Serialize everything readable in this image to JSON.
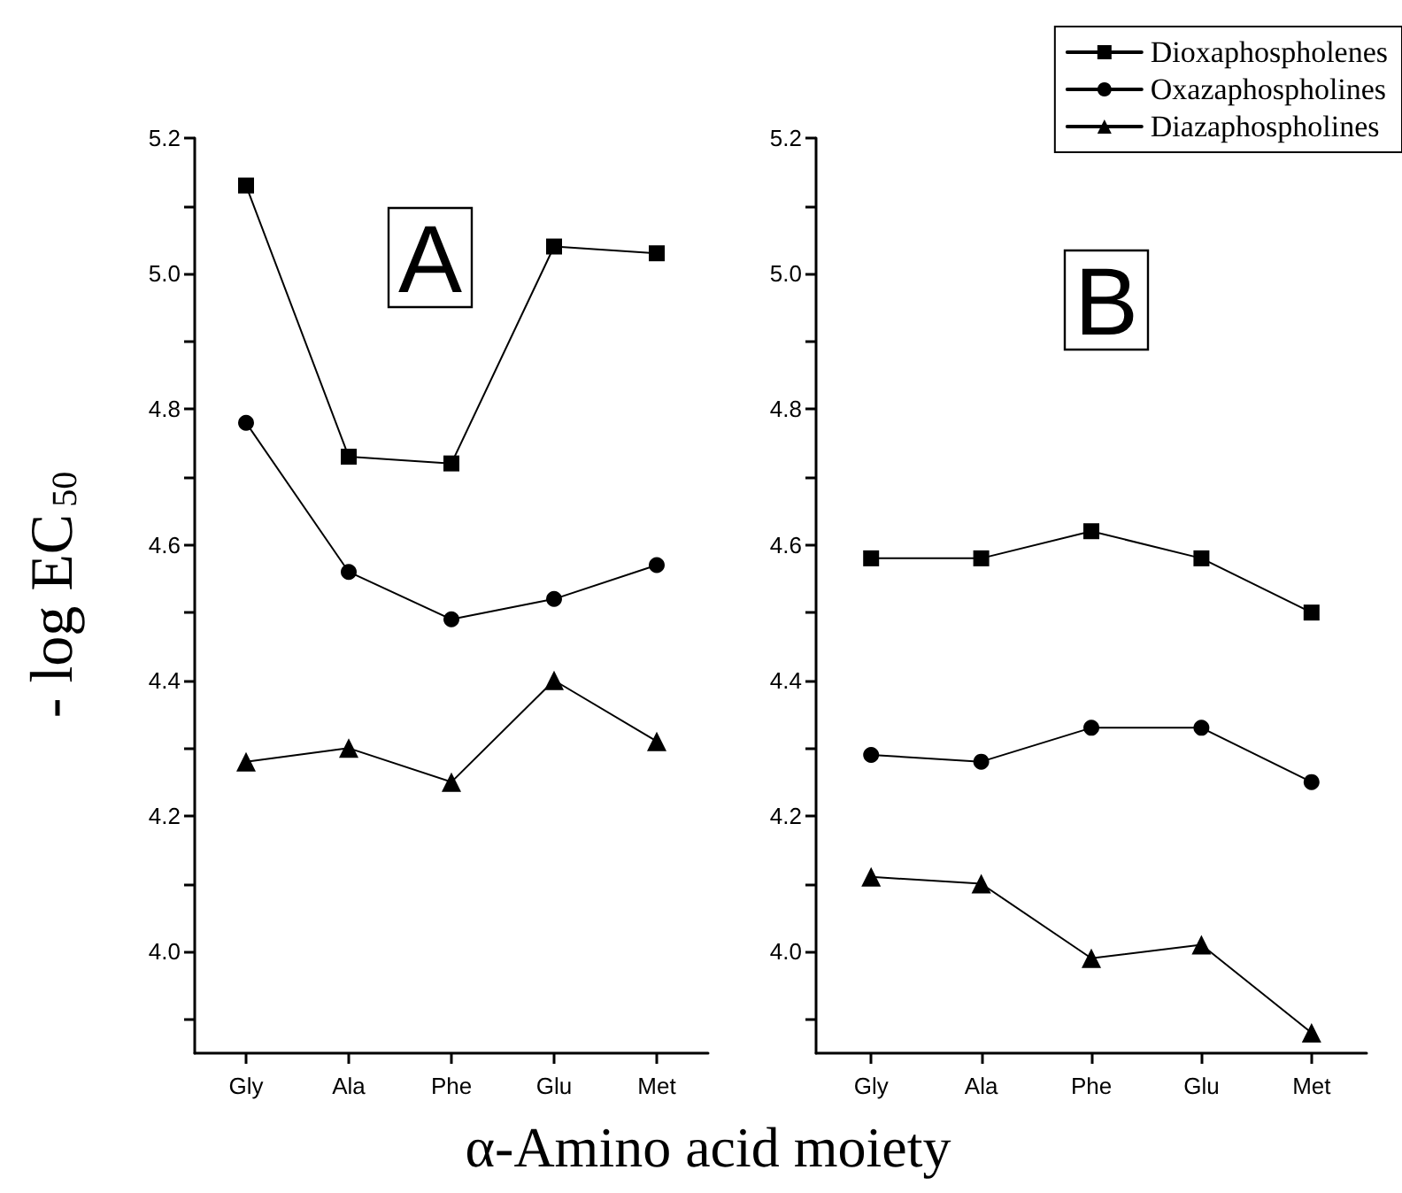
{
  "chart_data": [
    {
      "type": "line",
      "title": "A",
      "xlabel": "α-Amino acid moiety",
      "ylabel": "- log EC$_{50}$",
      "categories": [
        "Gly",
        "Ala",
        "Phe",
        "Glu",
        "Met"
      ],
      "series": [
        {
          "color": "#000000",
          "marker": "square",
          "values": [
            5.13,
            4.73,
            4.72,
            5.04,
            5.03
          ]
        },
        {
          "color": "#000000",
          "marker": "circle",
          "values": [
            4.78,
            4.56,
            4.49,
            4.52,
            4.57
          ]
        },
        {
          "color": "#000000",
          "marker": "triangle",
          "values": [
            4.28,
            4.3,
            4.25,
            4.4,
            4.31
          ]
        }
      ],
      "ylim": [
        3.85,
        5.2
      ],
      "yticks": [
        {
          "value": 3.9,
          "label": null
        },
        "4.0",
        {
          "value": 4.1,
          "label": null
        },
        4.2,
        {
          "value": 4.3,
          "label": null
        },
        4.4,
        {
          "value": 4.5,
          "label": null
        },
        4.6,
        {
          "value": 4.7,
          "label": null
        },
        4.8,
        {
          "value": 4.9,
          "label": null
        },
        "5.0",
        {
          "value": 5.1,
          "label": null
        },
        5.2
      ],
      "grid": false,
      "legend": false,
      "line_style": "solid"
    },
    {
      "type": "line",
      "title": "B",
      "categories": [
        "Gly",
        "Ala",
        "Phe",
        "Glu",
        "Met"
      ],
      "series": [
        {
          "name": "Dioxaphospholenes",
          "color": "#000000",
          "marker": "square",
          "values": [
            4.58,
            4.58,
            4.62,
            4.58,
            4.5
          ]
        },
        {
          "name": "Oxazaphospholines",
          "color": "#000000",
          "marker": "circle",
          "values": [
            4.29,
            4.28,
            4.33,
            4.33,
            4.25
          ]
        },
        {
          "name": "Diazaphospholines",
          "color": "#000000",
          "marker": "triangle",
          "values": [
            4.11,
            4.1,
            3.99,
            4.01,
            3.88
          ]
        }
      ],
      "ylim": [
        3.85,
        5.2
      ],
      "yticks": [
        {
          "value": 3.9,
          "label": null
        },
        "4.0",
        {
          "value": 4.1,
          "label": null
        },
        4.2,
        {
          "value": 4.3,
          "label": null
        },
        4.4,
        {
          "value": 4.5,
          "label": null
        },
        4.6,
        {
          "value": 4.7,
          "label": null
        },
        4.8,
        {
          "value": 4.9,
          "label": null
        },
        "5.0",
        {
          "value": 5.1,
          "label": null
        },
        5.2
      ],
      "grid": false,
      "legend": "top right",
      "line_style": "solid"
    }
  ]
}
